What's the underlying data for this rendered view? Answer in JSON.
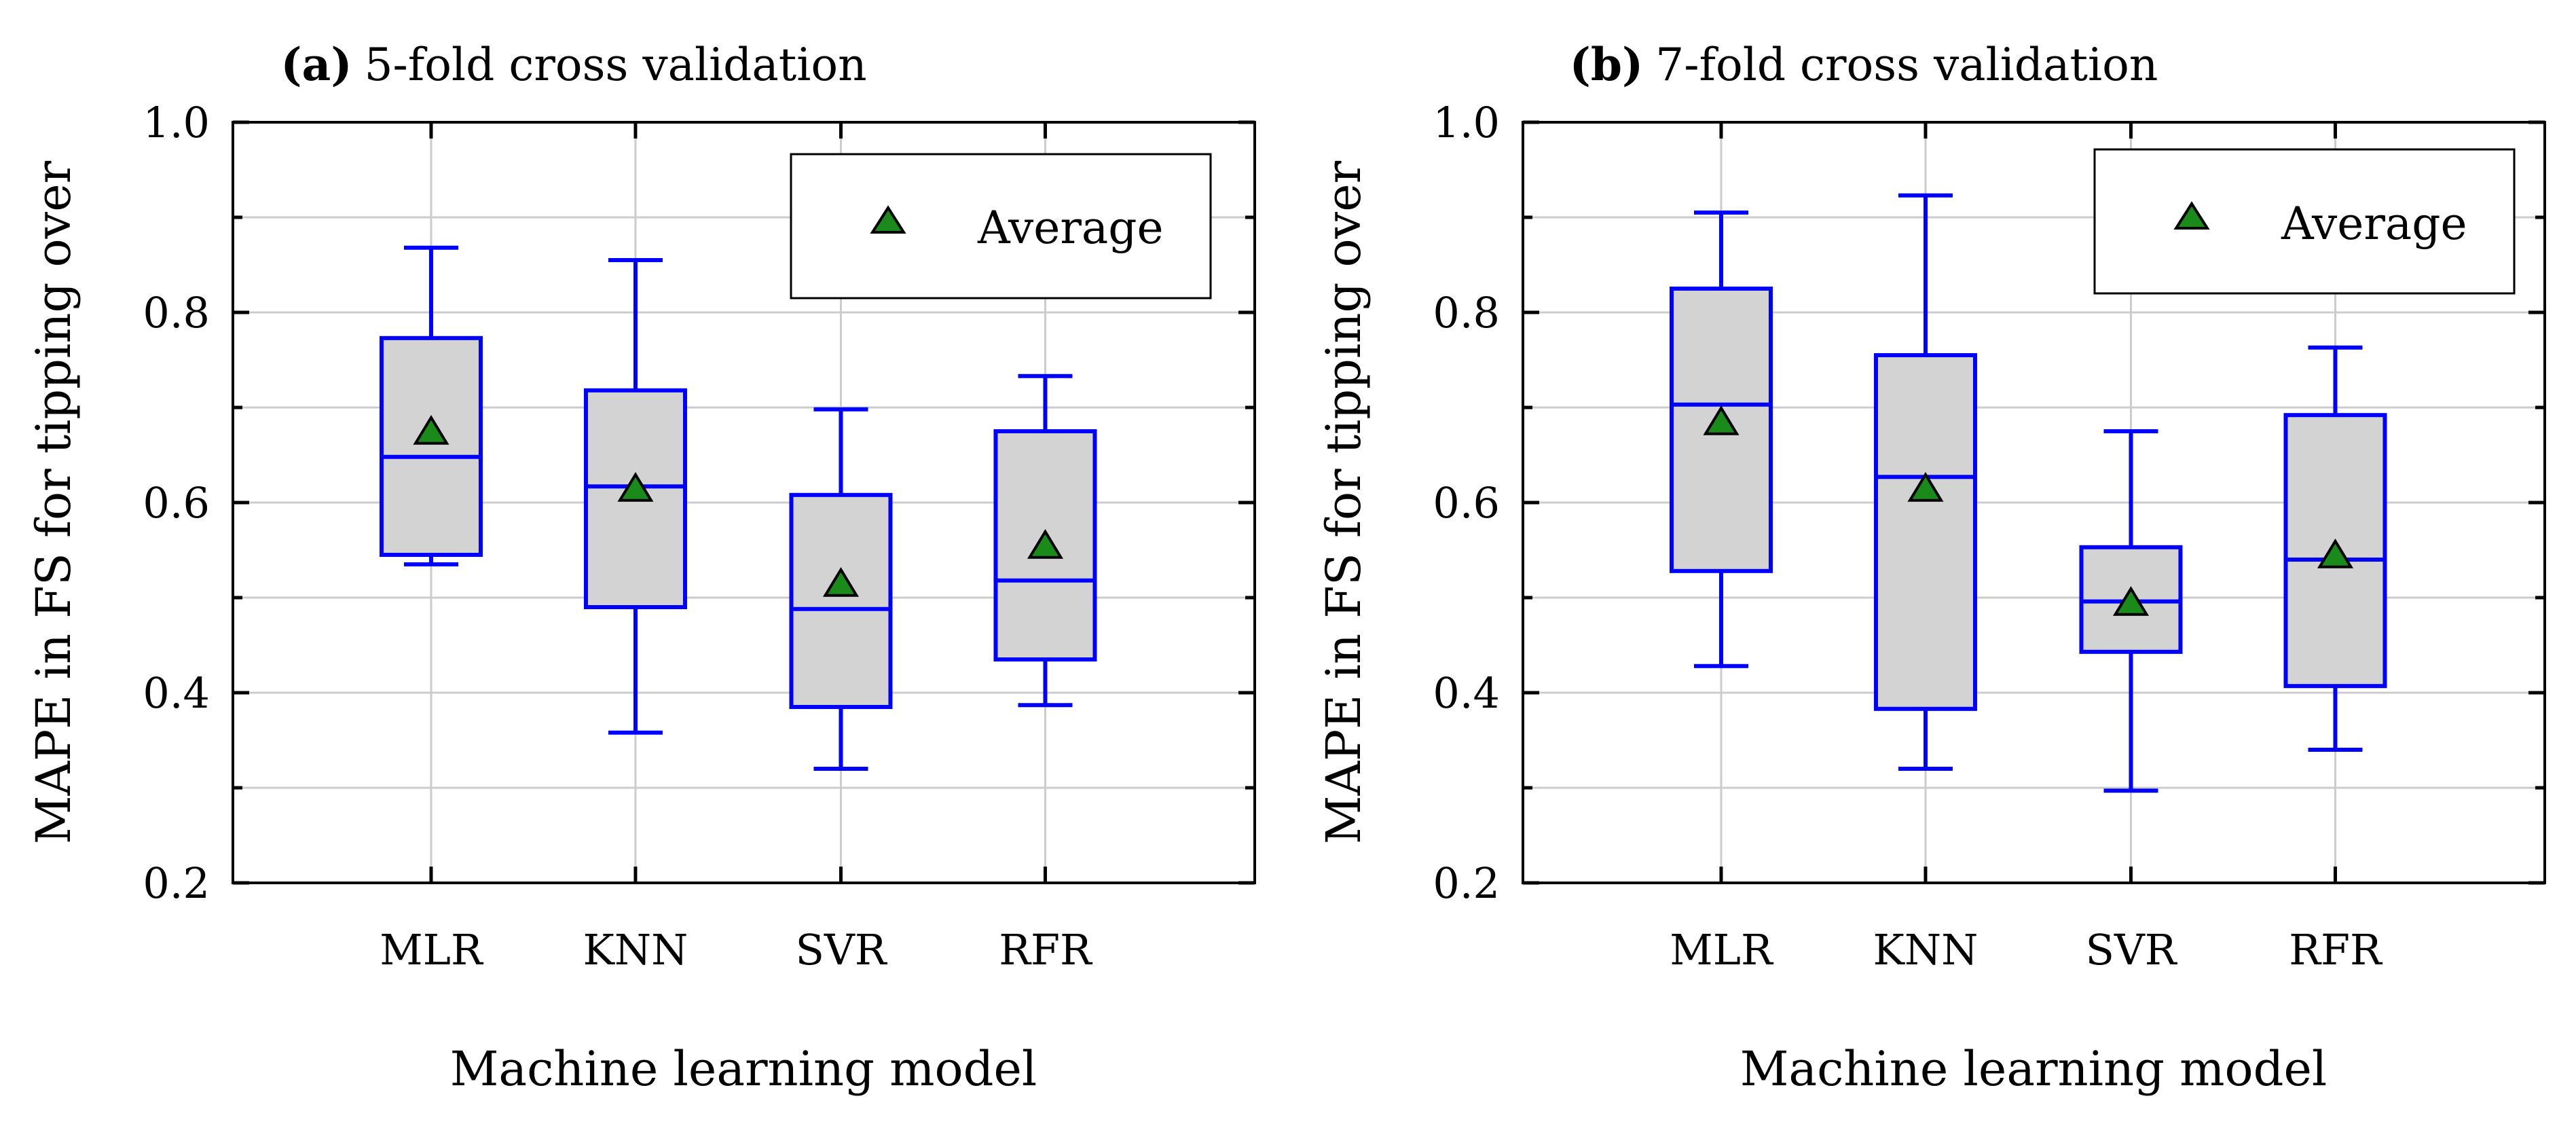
{
  "colors": {
    "box_fill": "#d3d3d3",
    "box_stroke": "#0000ff",
    "marker_fill": "#1a8a1a",
    "grid": "#cccccc"
  },
  "chart_data": [
    {
      "type": "box",
      "panel_tag": "(a)",
      "title": "5-fold cross validation",
      "xlabel": "Machine learning model",
      "ylabel": "MAPE in FS for tipping over",
      "ylim": [
        0.2,
        1.0
      ],
      "yticks": [
        "0.2",
        "0.4",
        "0.6",
        "0.8",
        "1.0"
      ],
      "legend": {
        "label": "Average",
        "position": "top-right"
      },
      "categories": [
        "MLR",
        "KNN",
        "SVR",
        "RFR"
      ],
      "boxes": [
        {
          "whisker_low": 0.535,
          "q1": 0.545,
          "median": 0.648,
          "q3": 0.773,
          "whisker_high": 0.868,
          "mean": 0.673
        },
        {
          "whisker_low": 0.358,
          "q1": 0.49,
          "median": 0.617,
          "q3": 0.718,
          "whisker_high": 0.855,
          "mean": 0.613
        },
        {
          "whisker_low": 0.32,
          "q1": 0.385,
          "median": 0.488,
          "q3": 0.608,
          "whisker_high": 0.698,
          "mean": 0.513
        },
        {
          "whisker_low": 0.387,
          "q1": 0.435,
          "median": 0.518,
          "q3": 0.675,
          "whisker_high": 0.733,
          "mean": 0.553
        }
      ]
    },
    {
      "type": "box",
      "panel_tag": "(b)",
      "title": "7-fold cross validation",
      "xlabel": "Machine learning model",
      "ylabel": "MAPE in FS for tipping over",
      "ylim": [
        0.2,
        1.0
      ],
      "yticks": [
        "0.2",
        "0.4",
        "0.6",
        "0.8",
        "1.0"
      ],
      "legend": {
        "label": "Average",
        "position": "top-right"
      },
      "categories": [
        "MLR",
        "KNN",
        "SVR",
        "RFR"
      ],
      "boxes": [
        {
          "whisker_low": 0.428,
          "q1": 0.528,
          "median": 0.703,
          "q3": 0.825,
          "whisker_high": 0.905,
          "mean": 0.683
        },
        {
          "whisker_low": 0.32,
          "q1": 0.383,
          "median": 0.627,
          "q3": 0.755,
          "whisker_high": 0.923,
          "mean": 0.613
        },
        {
          "whisker_low": 0.297,
          "q1": 0.443,
          "median": 0.496,
          "q3": 0.553,
          "whisker_high": 0.675,
          "mean": 0.493
        },
        {
          "whisker_low": 0.34,
          "q1": 0.407,
          "median": 0.54,
          "q3": 0.692,
          "whisker_high": 0.763,
          "mean": 0.543
        }
      ]
    }
  ]
}
